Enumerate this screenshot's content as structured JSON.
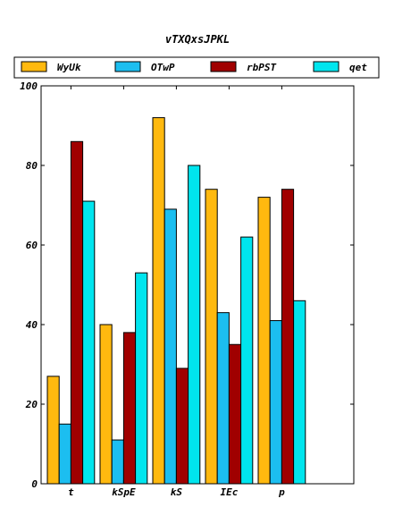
{
  "chart_data": {
    "type": "bar",
    "title": "vTXQxsJPKL",
    "xlabel": "",
    "ylabel": "",
    "categories": [
      "t",
      "kSpE",
      "kS",
      "IEc",
      "p"
    ],
    "series": [
      {
        "name": "WyUk",
        "color": "#FFB90F",
        "values": [
          27,
          40,
          92,
          74,
          72
        ]
      },
      {
        "name": "OTwP",
        "color": "#1CBEF0",
        "values": [
          15,
          11,
          69,
          43,
          41
        ]
      },
      {
        "name": "rbPST",
        "color": "#A00000",
        "values": [
          86,
          38,
          29,
          35,
          74
        ]
      },
      {
        "name": "qet",
        "color": "#00E5EE",
        "values": [
          71,
          53,
          80,
          62,
          46
        ]
      }
    ],
    "ylim": [
      0,
      100
    ],
    "yticks": [
      "0",
      "20",
      "40",
      "60",
      "80",
      "100"
    ],
    "legend_position": "top",
    "grid": false
  }
}
